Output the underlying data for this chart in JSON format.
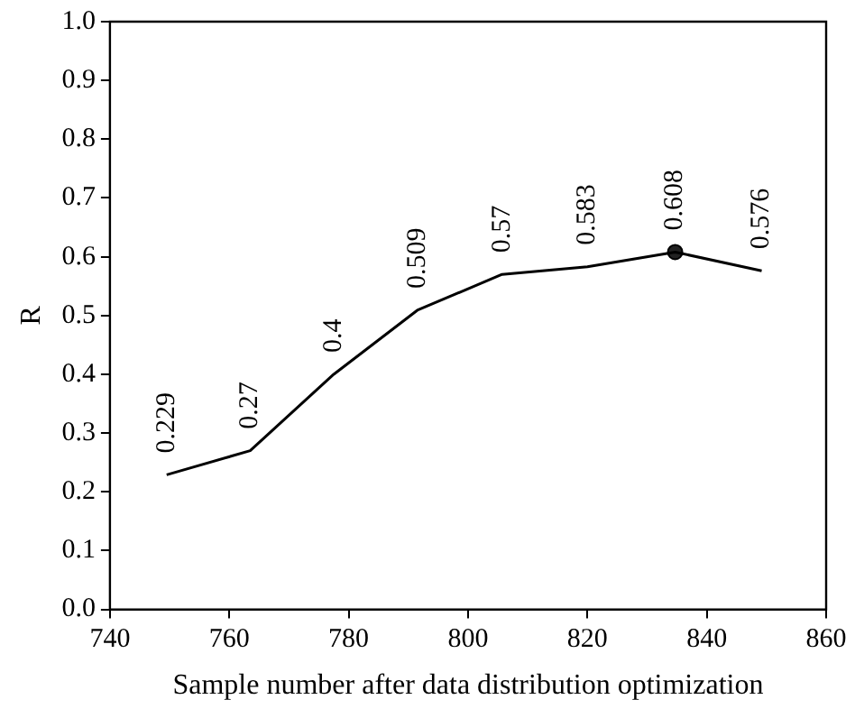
{
  "chart_data": {
    "type": "line",
    "xlabel": "Sample number after data distribution optimization",
    "ylabel": "R",
    "series": [
      {
        "color": "#000000",
        "marker": "none",
        "value_labels": [
          "0.229",
          "0.27",
          "0.4",
          "0.509",
          "0.57",
          "0.583",
          "0.608",
          "0.576"
        ],
        "x": [
          749.5,
          763.5,
          777.5,
          791.5,
          805.7,
          820,
          834.7,
          849.2
        ],
        "values": [
          0.229,
          0.27,
          0.4,
          0.509,
          0.57,
          0.583,
          0.608,
          0.576
        ]
      },
      {
        "type": "scatter",
        "color": "#222222",
        "marker": "circle",
        "x": [
          834.7
        ],
        "values": [
          0.608
        ]
      }
    ],
    "xlim": [
      740,
      860
    ],
    "xticks": [
      740,
      760,
      780,
      800,
      820,
      840,
      860
    ],
    "ylim": [
      0,
      1
    ],
    "yticks": [
      {
        "value": 0,
        "label": "0.0"
      },
      {
        "value": 0.1,
        "label": "0.1"
      },
      {
        "value": 0.2,
        "label": "0.2"
      },
      {
        "value": 0.3,
        "label": "0.3"
      },
      {
        "value": 0.4,
        "label": "0.4"
      },
      {
        "value": 0.5,
        "label": "0.5"
      },
      {
        "value": 0.6,
        "label": "0.6"
      },
      {
        "value": 0.7,
        "label": "0.7"
      },
      {
        "value": 0.8,
        "label": "0.8"
      },
      {
        "value": 0.9,
        "label": "0.9"
      },
      {
        "value": 1,
        "label": "1.0"
      }
    ],
    "grid": false,
    "legend": false
  }
}
